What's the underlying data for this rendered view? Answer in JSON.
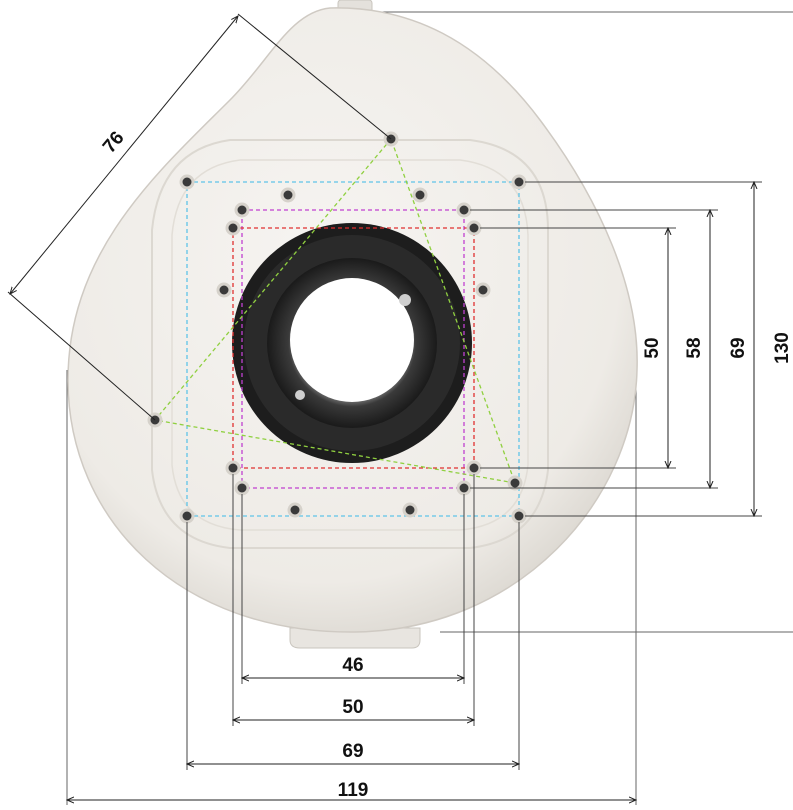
{
  "diagram": {
    "bottom_dimensions": [
      {
        "id": "dim-46",
        "label": "46"
      },
      {
        "id": "dim-50",
        "label": "50"
      },
      {
        "id": "dim-69",
        "label": "69"
      },
      {
        "id": "dim-119",
        "label": "119"
      }
    ],
    "right_dimensions": [
      {
        "id": "dim-50",
        "label": "50"
      },
      {
        "id": "dim-58",
        "label": "58"
      },
      {
        "id": "dim-69",
        "label": "69"
      },
      {
        "id": "dim-130",
        "label": "130"
      }
    ],
    "diagonal_dimension": {
      "label": "76"
    },
    "colors": {
      "body": "#f1efeb",
      "body_shadow": "#d8d5cf",
      "cable_hole_dark": "#1c1c1c",
      "pattern_cyan": "#5fc4e8",
      "pattern_magenta": "#c040d0",
      "pattern_red": "#e03030",
      "pattern_green": "#90d040",
      "dimension_line": "#222222"
    }
  }
}
